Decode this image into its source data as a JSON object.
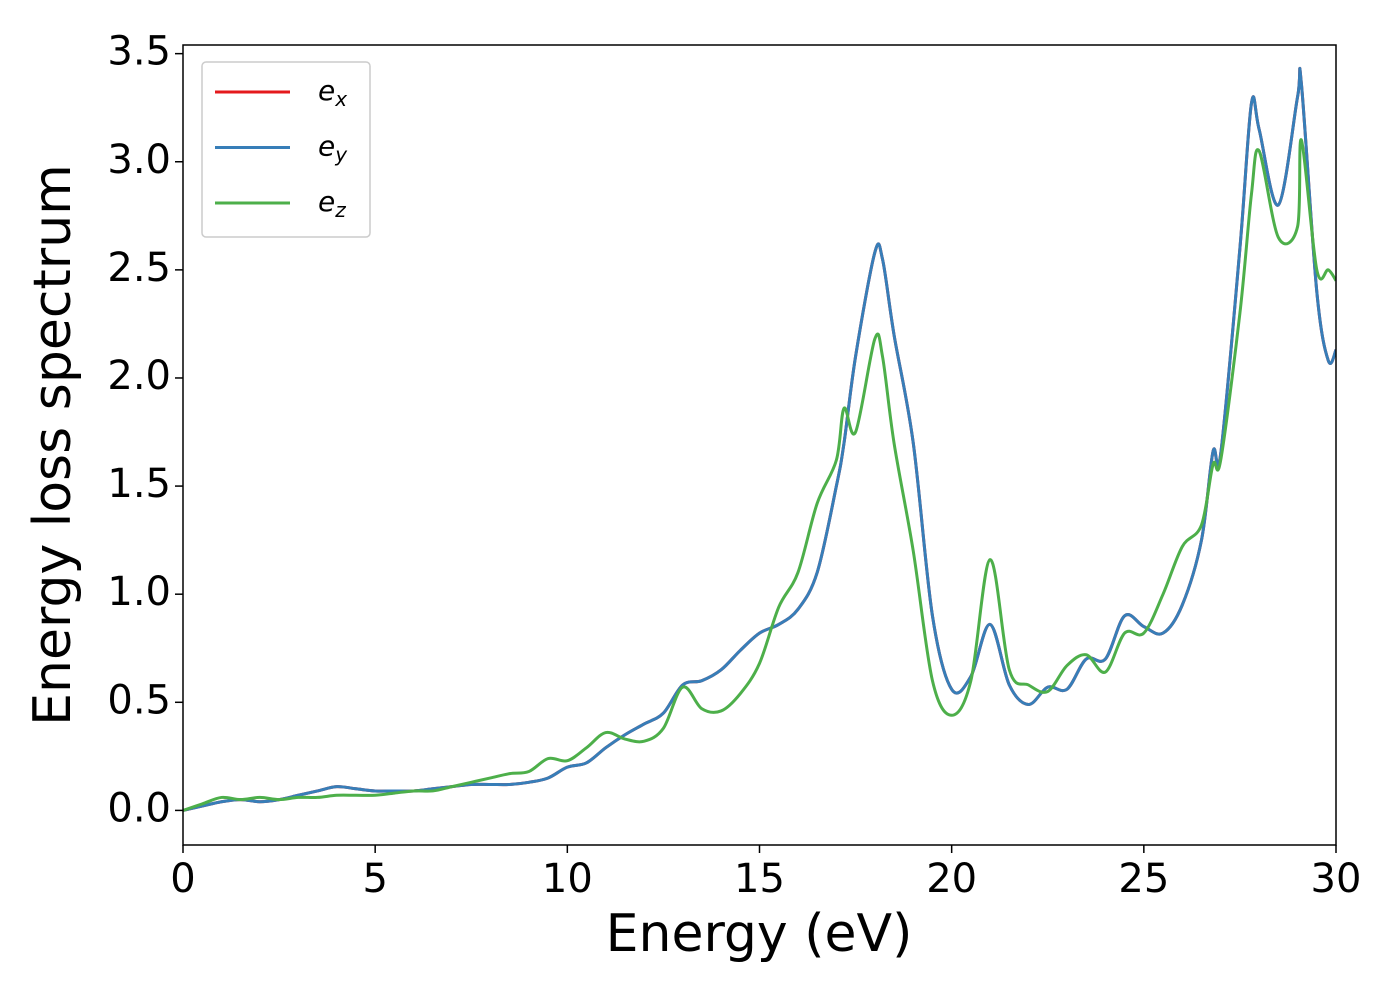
{
  "chart_data": {
    "type": "line",
    "xlabel": "Energy (eV)",
    "ylabel": "Energy loss spectrum",
    "xlim": [
      0,
      30
    ],
    "ylim": [
      -0.16,
      3.54
    ],
    "xticks": [
      0,
      5,
      10,
      15,
      20,
      25,
      30
    ],
    "yticks": [
      {
        "value": 0,
        "label": "0.0"
      },
      0.5,
      {
        "value": 1,
        "label": "1.0"
      },
      1.5,
      {
        "value": 2,
        "label": "2.0"
      },
      2.5,
      {
        "value": 3,
        "label": "3.0"
      },
      3.5
    ],
    "legend": "upper left",
    "x": [
      0,
      0.5,
      1,
      1.5,
      2,
      2.5,
      3,
      3.5,
      4,
      4.5,
      5,
      5.5,
      6,
      6.5,
      7,
      7.5,
      8,
      8.5,
      9,
      9.5,
      10,
      10.5,
      11,
      11.5,
      12,
      12.5,
      13,
      13.5,
      14,
      14.5,
      15,
      15.5,
      16,
      16.5,
      17,
      17.2,
      17.5,
      18,
      18.2,
      18.5,
      19,
      19.5,
      20,
      20.5,
      21,
      21.5,
      22,
      22.5,
      23,
      23.5,
      24,
      24.5,
      25,
      25.5,
      26,
      26.5,
      26.8,
      27,
      27.5,
      27.8,
      28,
      28.5,
      29,
      29.1,
      29.5,
      29.8,
      30
    ],
    "series": [
      {
        "name": "e_x",
        "color": "#e41a1c",
        "values": [
          0,
          0.02,
          0.04,
          0.05,
          0.04,
          0.05,
          0.07,
          0.09,
          0.11,
          0.1,
          0.09,
          0.09,
          0.09,
          0.1,
          0.11,
          0.12,
          0.12,
          0.12,
          0.13,
          0.15,
          0.2,
          0.22,
          0.29,
          0.35,
          0.4,
          0.45,
          0.58,
          0.6,
          0.65,
          0.74,
          0.82,
          0.86,
          0.93,
          1.1,
          1.5,
          1.7,
          2.1,
          2.58,
          2.55,
          2.2,
          1.7,
          0.9,
          0.56,
          0.62,
          0.86,
          0.58,
          0.49,
          0.57,
          0.56,
          0.7,
          0.7,
          0.9,
          0.85,
          0.82,
          0.95,
          1.25,
          1.66,
          1.65,
          2.6,
          3.27,
          3.15,
          2.8,
          3.3,
          3.36,
          2.4,
          2.08,
          2.13
        ]
      },
      {
        "name": "e_y",
        "color": "#377eb8",
        "values": [
          0,
          0.02,
          0.04,
          0.05,
          0.04,
          0.05,
          0.07,
          0.09,
          0.11,
          0.1,
          0.09,
          0.09,
          0.09,
          0.1,
          0.11,
          0.12,
          0.12,
          0.12,
          0.13,
          0.15,
          0.2,
          0.22,
          0.29,
          0.35,
          0.4,
          0.45,
          0.58,
          0.6,
          0.65,
          0.74,
          0.82,
          0.86,
          0.93,
          1.1,
          1.5,
          1.7,
          2.1,
          2.58,
          2.55,
          2.2,
          1.7,
          0.9,
          0.56,
          0.62,
          0.86,
          0.58,
          0.49,
          0.57,
          0.56,
          0.7,
          0.7,
          0.9,
          0.85,
          0.82,
          0.95,
          1.25,
          1.66,
          1.65,
          2.6,
          3.27,
          3.15,
          2.8,
          3.3,
          3.36,
          2.4,
          2.08,
          2.13
        ]
      },
      {
        "name": "e_z",
        "color": "#4daf4a",
        "values": [
          0,
          0.03,
          0.06,
          0.05,
          0.06,
          0.05,
          0.06,
          0.06,
          0.07,
          0.07,
          0.07,
          0.08,
          0.09,
          0.09,
          0.11,
          0.13,
          0.15,
          0.17,
          0.18,
          0.24,
          0.23,
          0.29,
          0.36,
          0.33,
          0.32,
          0.38,
          0.57,
          0.47,
          0.46,
          0.54,
          0.68,
          0.94,
          1.1,
          1.42,
          1.62,
          1.86,
          1.75,
          2.18,
          2.1,
          1.7,
          1.2,
          0.6,
          0.44,
          0.6,
          1.16,
          0.65,
          0.58,
          0.55,
          0.67,
          0.72,
          0.64,
          0.82,
          0.82,
          1.0,
          1.22,
          1.32,
          1.6,
          1.62,
          2.3,
          2.85,
          3.05,
          2.65,
          2.7,
          3.1,
          2.5,
          2.5,
          2.45
        ]
      }
    ]
  }
}
